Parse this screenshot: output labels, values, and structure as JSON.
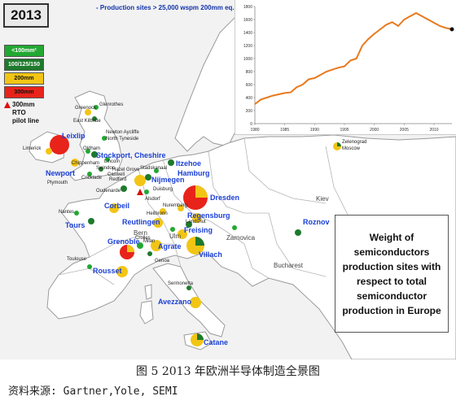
{
  "map": {
    "year": "2013",
    "subtitle": "- Production sites > 25,000 wspm 200mm eq.",
    "legend": [
      {
        "label": "<100mm²",
        "color": "#22a832",
        "text_color": "#ffffff"
      },
      {
        "label": "100/125/150",
        "color": "#1e7a2c",
        "text_color": "#ffffff"
      },
      {
        "label": "200mm",
        "color": "#f2c515",
        "text_color": "#111111"
      },
      {
        "label": "300mm",
        "color": "#e8231a",
        "text_color": "#111111"
      }
    ],
    "rto_label_1": "300mm RTO",
    "rto_label_2": "pilot line",
    "colors": {
      "sea": "#f2f2f2",
      "land": "#ffffff",
      "border": "#9a9a9a",
      "major_label": "#1a3fd6",
      "line": "#e8791d"
    },
    "site_labels": [
      {
        "text": "Leixlip",
        "kind": "major"
      },
      {
        "text": "Stockport, Cheshire",
        "kind": "major"
      },
      {
        "text": "Newport",
        "kind": "major"
      },
      {
        "text": "Itzehoe",
        "kind": "major"
      },
      {
        "text": "Hamburg",
        "kind": "major"
      },
      {
        "text": "Nijmegen",
        "kind": "major"
      },
      {
        "text": "Dresden",
        "kind": "major"
      },
      {
        "text": "Corbeil",
        "kind": "major"
      },
      {
        "text": "Regensburg",
        "kind": "major"
      },
      {
        "text": "Reutlingen",
        "kind": "major"
      },
      {
        "text": "Freising",
        "kind": "major"
      },
      {
        "text": "Tours",
        "kind": "major"
      },
      {
        "text": "Grenoble",
        "kind": "major"
      },
      {
        "text": "Agrate",
        "kind": "major"
      },
      {
        "text": "Villach",
        "kind": "major"
      },
      {
        "text": "Rousset",
        "kind": "major"
      },
      {
        "text": "Avezzano",
        "kind": "major"
      },
      {
        "text": "Catane",
        "kind": "major"
      },
      {
        "text": "Roznov",
        "kind": "major"
      },
      {
        "text": "Greenock",
        "kind": "minor"
      },
      {
        "text": "Glenrothes",
        "kind": "minor"
      },
      {
        "text": "East Kilbride",
        "kind": "minor"
      },
      {
        "text": "Newton Aycliffe",
        "kind": "minor"
      },
      {
        "text": "North Tyneside",
        "kind": "minor"
      },
      {
        "text": "Limerick",
        "kind": "minor"
      },
      {
        "text": "Oldham",
        "kind": "minor"
      },
      {
        "text": "Chippenham",
        "kind": "minor"
      },
      {
        "text": "Lincoln",
        "kind": "minor"
      },
      {
        "text": "Swindon",
        "kind": "minor"
      },
      {
        "text": "Caswell",
        "kind": "minor"
      },
      {
        "text": "Cricklade",
        "kind": "minor"
      },
      {
        "text": "Plymouth",
        "kind": "minor"
      },
      {
        "text": "Hazel Grove",
        "kind": "minor"
      },
      {
        "text": "Redford",
        "kind": "minor"
      },
      {
        "text": "Stadskanaal",
        "kind": "minor"
      },
      {
        "text": "Duisburg",
        "kind": "minor"
      },
      {
        "text": "Oudenarde",
        "kind": "minor"
      },
      {
        "text": "Alsdorf",
        "kind": "minor"
      },
      {
        "text": "Heilbronn",
        "kind": "minor"
      },
      {
        "text": "Nuremberg",
        "kind": "minor"
      },
      {
        "text": "Landshut",
        "kind": "minor"
      },
      {
        "text": "Rousset",
        "kind": "minor_skip"
      },
      {
        "text": "Crolles",
        "kind": "minor"
      },
      {
        "text": "Milan",
        "kind": "minor"
      },
      {
        "text": "Genoa",
        "kind": "minor"
      },
      {
        "text": "Toulouse",
        "kind": "minor"
      },
      {
        "text": "Nantes",
        "kind": "minor"
      },
      {
        "text": "Sermonetta",
        "kind": "minor"
      },
      {
        "text": "Zelenograd",
        "kind": "minor"
      },
      {
        "text": "Moscow",
        "kind": "minor"
      }
    ],
    "country_labels": [
      "Kiev",
      "Bucharest",
      "Zarnovica",
      "Bern",
      "Ulm"
    ],
    "weight_box": "Weight of semiconductors production sites with respect to total semiconductor production in Europe"
  },
  "chart_data": {
    "type": "line",
    "title": "",
    "xlabel": "",
    "ylabel": "",
    "x": [
      1980,
      1981,
      1982,
      1983,
      1984,
      1985,
      1986,
      1987,
      1988,
      1989,
      1990,
      1991,
      1992,
      1993,
      1994,
      1995,
      1996,
      1997,
      1998,
      1999,
      2000,
      2001,
      2002,
      2003,
      2004,
      2005,
      2006,
      2007,
      2008,
      2009,
      2010,
      2011,
      2012,
      2013
    ],
    "series": [
      {
        "values": [
          300,
          370,
          400,
          430,
          450,
          470,
          480,
          560,
          600,
          680,
          700,
          750,
          800,
          830,
          860,
          880,
          970,
          1000,
          1200,
          1300,
          1380,
          1450,
          1520,
          1560,
          1500,
          1600,
          1650,
          1700,
          1650,
          1600,
          1550,
          1500,
          1470,
          1450
        ],
        "color": "#e8791d"
      }
    ],
    "xlim": [
      1980,
      2013
    ],
    "ylim": [
      0,
      1800
    ],
    "yticks": [
      0,
      200,
      400,
      600,
      800,
      1000,
      1200,
      1400,
      1600,
      1800
    ],
    "xticks": [
      "1980",
      "1985",
      "1990",
      "1995",
      "2000",
      "2005",
      "2010"
    ],
    "marker_last": "dark-dot"
  },
  "caption": "图 5 2013 年欧洲半导体制造全景图",
  "source": "资料来源: Gartner,Yole, SEMI"
}
